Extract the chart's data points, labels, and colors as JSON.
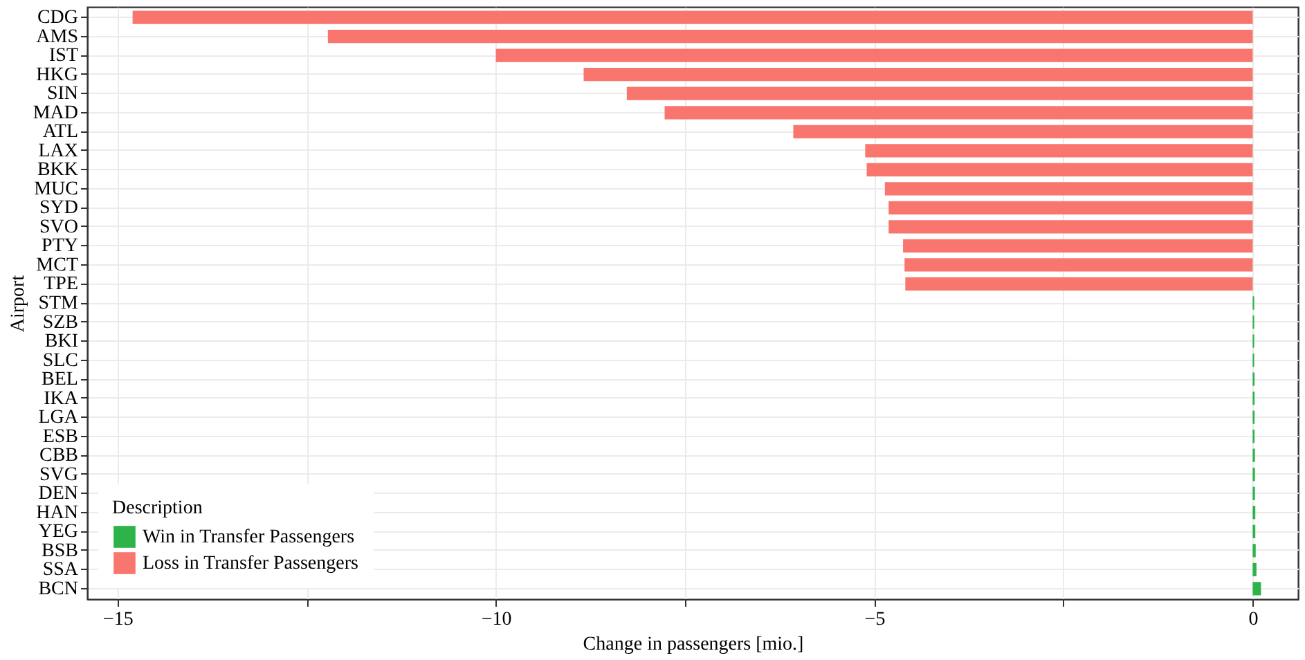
{
  "chart_data": {
    "type": "bar",
    "orientation": "horizontal",
    "xlabel": "Change in passengers [mio.]",
    "ylabel": "Airport",
    "legend_title": "Description",
    "legend": "bottom left",
    "grid": true,
    "categories": [
      "CDG",
      "AMS",
      "IST",
      "HKG",
      "SIN",
      "MAD",
      "ATL",
      "LAX",
      "BKK",
      "MUC",
      "SYD",
      "SVO",
      "PTY",
      "MCT",
      "TPE",
      "STM",
      "SZB",
      "BKI",
      "SLC",
      "BEL",
      "IKA",
      "LGA",
      "ESB",
      "CBB",
      "SVG",
      "DEN",
      "HAN",
      "YEG",
      "BSB",
      "SSA",
      "BCN"
    ],
    "xlim": [
      -15.4,
      0.6
    ],
    "xticks": [
      -15,
      {
        "value": -12.5,
        "label": null
      },
      -10,
      {
        "value": -7.5,
        "label": null
      },
      -5,
      {
        "value": -2.5,
        "label": null
      },
      0
    ],
    "series": [
      {
        "name": "Win in Transfer Passengers",
        "color": "#2db34a",
        "values": [
          null,
          null,
          null,
          null,
          null,
          null,
          null,
          null,
          null,
          null,
          null,
          null,
          null,
          null,
          null,
          0.02,
          0.02,
          0.02,
          0.02,
          0.025,
          0.025,
          0.025,
          0.025,
          0.03,
          0.03,
          0.03,
          0.035,
          0.035,
          0.04,
          0.05,
          0.11
        ]
      },
      {
        "name": "Loss in Transfer Passengers",
        "color": "#f8766d",
        "values": [
          -14.8,
          -12.22,
          -10.0,
          -8.84,
          -8.27,
          -7.77,
          -6.07,
          -5.12,
          -5.1,
          -4.86,
          -4.81,
          -4.81,
          -4.62,
          -4.6,
          -4.59,
          null,
          null,
          null,
          null,
          null,
          null,
          null,
          null,
          null,
          null,
          null,
          null,
          null,
          null,
          null,
          null
        ]
      }
    ]
  }
}
